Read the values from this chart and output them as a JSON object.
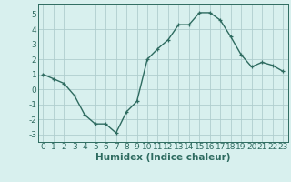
{
  "x": [
    0,
    1,
    2,
    3,
    4,
    5,
    6,
    7,
    8,
    9,
    10,
    11,
    12,
    13,
    14,
    15,
    16,
    17,
    18,
    19,
    20,
    21,
    22,
    23
  ],
  "y": [
    1.0,
    0.7,
    0.4,
    -0.4,
    -1.7,
    -2.3,
    -2.3,
    -2.9,
    -1.5,
    -0.8,
    2.0,
    2.7,
    3.3,
    4.3,
    4.3,
    5.1,
    5.1,
    4.6,
    3.5,
    2.3,
    1.5,
    1.8,
    1.6,
    1.2
  ],
  "line_color": "#2e6b60",
  "marker": "+",
  "bg_color": "#d8f0ee",
  "grid_color": "#b0cece",
  "xlabel": "Humidex (Indice chaleur)",
  "xlim": [
    -0.5,
    23.5
  ],
  "ylim": [
    -3.5,
    5.7
  ],
  "xticks": [
    0,
    1,
    2,
    3,
    4,
    5,
    6,
    7,
    8,
    9,
    10,
    11,
    12,
    13,
    14,
    15,
    16,
    17,
    18,
    19,
    20,
    21,
    22,
    23
  ],
  "yticks": [
    -3,
    -2,
    -1,
    0,
    1,
    2,
    3,
    4,
    5
  ],
  "tick_fontsize": 6.5,
  "label_fontsize": 7.5
}
